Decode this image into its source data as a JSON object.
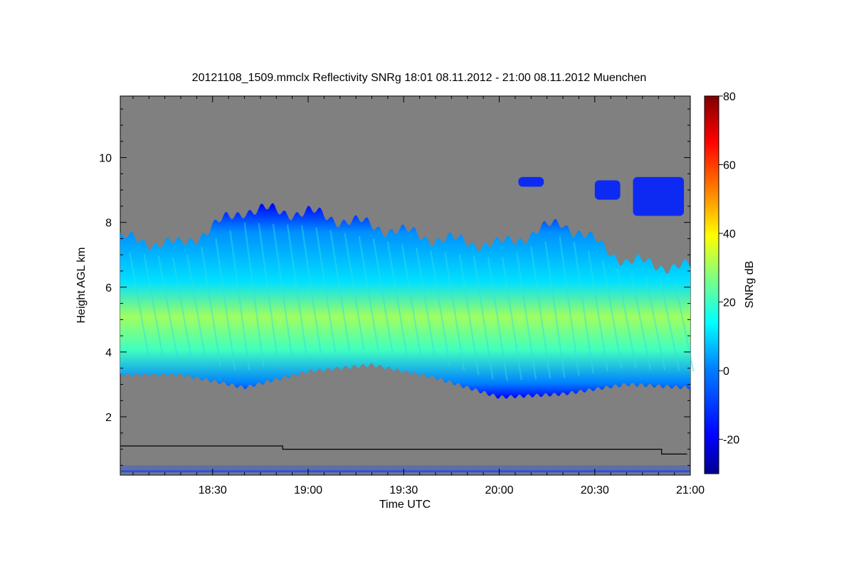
{
  "chart_data": {
    "type": "heatmap",
    "title": "20121108_1509.mmclx Reflectivity SNRg   18:01 08.11.2012 - 21:00 08.11.2012 Muenchen",
    "xlabel": "Time UTC",
    "ylabel": "Height AGL km",
    "colorbar_label": "SNRg dB",
    "x_ticks": [
      "18:30",
      "19:00",
      "19:30",
      "20:00",
      "20:30",
      "21:00"
    ],
    "y_ticks": [
      "2",
      "4",
      "6",
      "8",
      "10"
    ],
    "colorbar_ticks": [
      "-20",
      "0",
      "20",
      "40",
      "60",
      "80"
    ],
    "xlim": [
      "18:01",
      "21:00"
    ],
    "ylim": [
      0.2,
      11.9
    ],
    "clim": [
      -30,
      80
    ],
    "background_color": "#808080",
    "colormap": [
      "#00008f",
      "#0000ff",
      "#0080ff",
      "#00ffff",
      "#80ff80",
      "#ffff00",
      "#ff8000",
      "#ff0000",
      "#800000"
    ],
    "cloud_layer": {
      "time_min": [
        1,
        20,
        40,
        60,
        80,
        100,
        120,
        140,
        160,
        179
      ],
      "base_km": [
        3.3,
        3.3,
        2.9,
        3.4,
        3.6,
        3.2,
        2.6,
        2.7,
        3.0,
        2.9
      ],
      "top_km": [
        7.5,
        7.3,
        8.4,
        8.3,
        7.9,
        7.5,
        7.3,
        8.0,
        6.8,
        6.6
      ],
      "peak_snr_db": 35
    },
    "upper_patches": [
      {
        "time_min": [
          162,
          178
        ],
        "base_km": 8.2,
        "top_km": 9.4
      },
      {
        "time_min": [
          150,
          158
        ],
        "base_km": 8.7,
        "top_km": 9.3
      },
      {
        "time_min": [
          126,
          134
        ],
        "base_km": 9.1,
        "top_km": 9.4
      }
    ],
    "lowest_range_gate_km": [
      1.1,
      1.0,
      0.85
    ],
    "lowest_range_gate_time_min": [
      1,
      52,
      171,
      179
    ]
  }
}
